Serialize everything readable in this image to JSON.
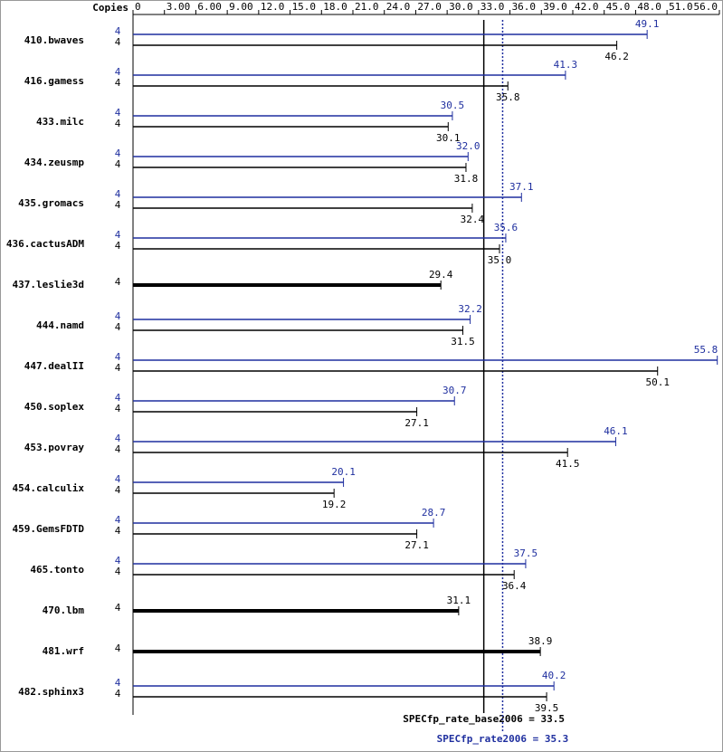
{
  "chart_data": {
    "type": "spec-bar",
    "copies_label": "Copies",
    "categories": [
      "410.bwaves",
      "416.gamess",
      "433.milc",
      "434.zeusmp",
      "435.gromacs",
      "436.cactusADM",
      "437.leslie3d",
      "444.namd",
      "447.dealII",
      "450.soplex",
      "453.povray",
      "454.calculix",
      "459.GemsFDTD",
      "465.tonto",
      "470.lbm",
      "481.wrf",
      "482.sphinx3"
    ],
    "series": [
      {
        "color": "#1f2f9f",
        "copies": [
          4,
          4,
          4,
          4,
          4,
          4,
          null,
          4,
          4,
          4,
          4,
          4,
          4,
          4,
          null,
          null,
          4
        ],
        "values": [
          49.1,
          41.3,
          30.5,
          32.0,
          37.1,
          35.6,
          null,
          32.2,
          55.8,
          30.7,
          46.1,
          20.1,
          28.7,
          37.5,
          null,
          null,
          40.2
        ],
        "value_labels": [
          "49.1",
          "41.3",
          "30.5",
          "32.0",
          "37.1",
          "35.6",
          null,
          "32.2",
          "55.8",
          "30.7",
          "46.1",
          "20.1",
          "28.7",
          "37.5",
          null,
          null,
          "40.2"
        ]
      },
      {
        "color": "#000000",
        "copies": [
          4,
          4,
          4,
          4,
          4,
          4,
          4,
          4,
          4,
          4,
          4,
          4,
          4,
          4,
          4,
          4,
          4
        ],
        "values": [
          46.2,
          35.8,
          30.1,
          31.8,
          32.4,
          35.0,
          29.4,
          31.5,
          50.1,
          27.1,
          41.5,
          19.2,
          27.1,
          36.4,
          31.1,
          38.9,
          39.5
        ],
        "value_labels": [
          "46.2",
          "35.8",
          "30.1",
          "31.8",
          "32.4",
          "35.0",
          "29.4",
          "31.5",
          "50.1",
          "27.1",
          "41.5",
          "19.2",
          "27.1",
          "36.4",
          "31.1",
          "38.9",
          "39.5"
        ]
      }
    ],
    "xlim": [
      0,
      56
    ],
    "xticks": [
      0,
      {
        "value": 3,
        "label": "3.00"
      },
      {
        "value": 6,
        "label": "6.00"
      },
      {
        "value": 9,
        "label": "9.00"
      },
      {
        "value": 12,
        "label": "12.0"
      },
      {
        "value": 15,
        "label": "15.0"
      },
      {
        "value": 18,
        "label": "18.0"
      },
      {
        "value": 21,
        "label": "21.0"
      },
      {
        "value": 24,
        "label": "24.0"
      },
      {
        "value": 27,
        "label": "27.0"
      },
      {
        "value": 30,
        "label": "30.0"
      },
      {
        "value": 33,
        "label": "33.0"
      },
      {
        "value": 36,
        "label": "36.0"
      },
      {
        "value": 39,
        "label": "39.0"
      },
      {
        "value": 42,
        "label": "42.0"
      },
      {
        "value": 45,
        "label": "45.0"
      },
      {
        "value": 48,
        "label": "48.0"
      },
      {
        "value": 51,
        "label": "51.0"
      },
      {
        "value": 56,
        "label": "56.0"
      }
    ],
    "reference_lines": [
      {
        "label": "SPECfp_rate_base2006 = 33.5",
        "value": 33.5,
        "color": "#000000",
        "style": "solid"
      },
      {
        "label": "SPECfp_rate2006 = 35.3",
        "value": 35.3,
        "color": "#1f2f9f",
        "style": "dotted"
      }
    ]
  }
}
